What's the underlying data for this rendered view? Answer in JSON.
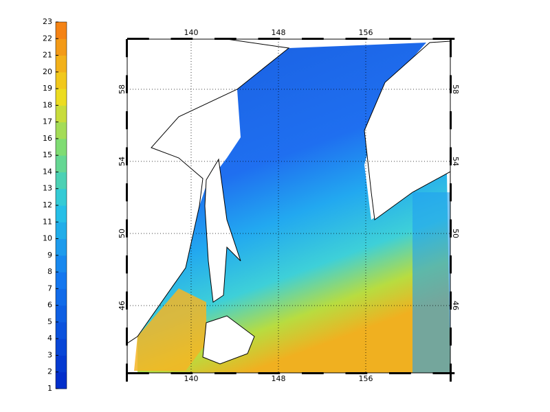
{
  "colorbar": {
    "ticks": [
      1,
      2,
      3,
      4,
      5,
      6,
      7,
      8,
      9,
      10,
      11,
      12,
      13,
      14,
      15,
      16,
      17,
      18,
      19,
      20,
      21,
      22,
      23
    ]
  },
  "map": {
    "lon_ticks": [
      140,
      148,
      156
    ],
    "lat_ticks": [
      46,
      50,
      54,
      58
    ]
  }
}
